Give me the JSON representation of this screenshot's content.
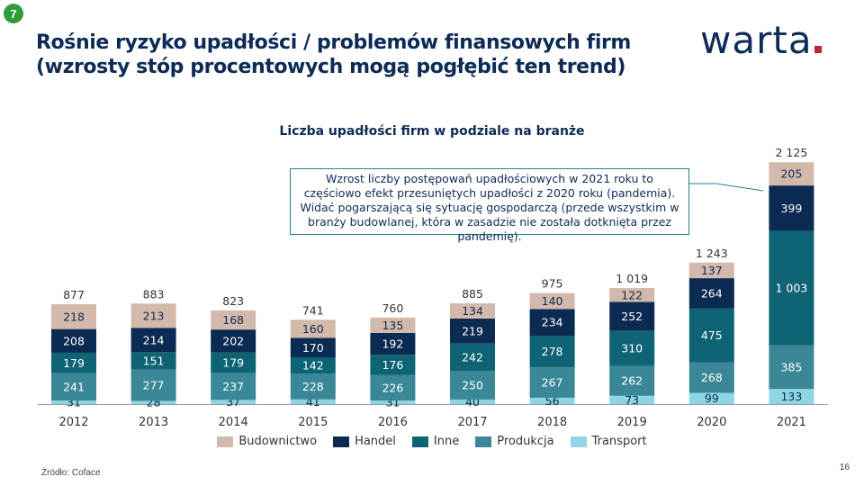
{
  "badge": "7",
  "title_line1": "Rośnie ryzyko upadłości / problemów finansowych firm",
  "title_line2": "(wzrosty stóp procentowych mogą pogłębić ten trend)",
  "logo": "warta",
  "annotation": "Wzrost liczby postępowań upadłościowych w 2021 roku to częściowo efekt przesuniętych upadłości z 2020 roku (pandemia). Widać pogarszającą się sytuację gospodarczą (przede wszystkim w branży budowlanej, która w zasadzie nie została dotknięta przez pandemię).",
  "source": "Źródło: Coface",
  "page_number": "16",
  "chart_data": {
    "type": "bar",
    "stacked": true,
    "title": "Liczba upadłości firm w podziale na branże",
    "categories": [
      "2012",
      "2013",
      "2014",
      "2015",
      "2016",
      "2017",
      "2018",
      "2019",
      "2020",
      "2021"
    ],
    "totals": [
      877,
      883,
      823,
      741,
      760,
      885,
      975,
      1019,
      1243,
      2125
    ],
    "total_labels": [
      "877",
      "883",
      "823",
      "741",
      "760",
      "885",
      "975",
      "1 019",
      "1 243",
      "2 125"
    ],
    "series": [
      {
        "name": "Transport",
        "color": "#8fd6e3",
        "label_color": "#0d2b55",
        "values": [
          31,
          28,
          37,
          41,
          31,
          40,
          56,
          73,
          99,
          133
        ],
        "labels": [
          "31",
          "28",
          "37",
          "41",
          "31",
          "40",
          "56",
          "73",
          "99",
          "133"
        ]
      },
      {
        "name": "Produkcja",
        "color": "#3a8797",
        "label_color": "#ffffff",
        "values": [
          241,
          277,
          237,
          228,
          226,
          250,
          267,
          262,
          268,
          385
        ],
        "labels": [
          "241",
          "277",
          "237",
          "228",
          "226",
          "250",
          "267",
          "262",
          "268",
          "385"
        ]
      },
      {
        "name": "Inne",
        "color": "#0e6474",
        "label_color": "#ffffff",
        "values": [
          179,
          151,
          179,
          142,
          176,
          242,
          278,
          310,
          475,
          1003
        ],
        "labels": [
          "179",
          "151",
          "179",
          "142",
          "176",
          "242",
          "278",
          "310",
          "475",
          "1 003"
        ]
      },
      {
        "name": "Handel",
        "color": "#0b2b52",
        "label_color": "#ffffff",
        "values": [
          208,
          214,
          202,
          170,
          192,
          219,
          234,
          252,
          264,
          399
        ],
        "labels": [
          "208",
          "214",
          "202",
          "170",
          "192",
          "219",
          "234",
          "252",
          "264",
          "399"
        ]
      },
      {
        "name": "Budownictwo",
        "color": "#d3b9ab",
        "label_color": "#0d2b55",
        "values": [
          218,
          213,
          168,
          160,
          135,
          134,
          140,
          122,
          137,
          205
        ],
        "labels": [
          "218",
          "213",
          "168",
          "160",
          "135",
          "134",
          "140",
          "122",
          "137",
          "205"
        ]
      }
    ],
    "legend_order": [
      "Budownictwo",
      "Handel",
      "Inne",
      "Produkcja",
      "Transport"
    ],
    "legend_placement": "bottom",
    "grid": false
  }
}
